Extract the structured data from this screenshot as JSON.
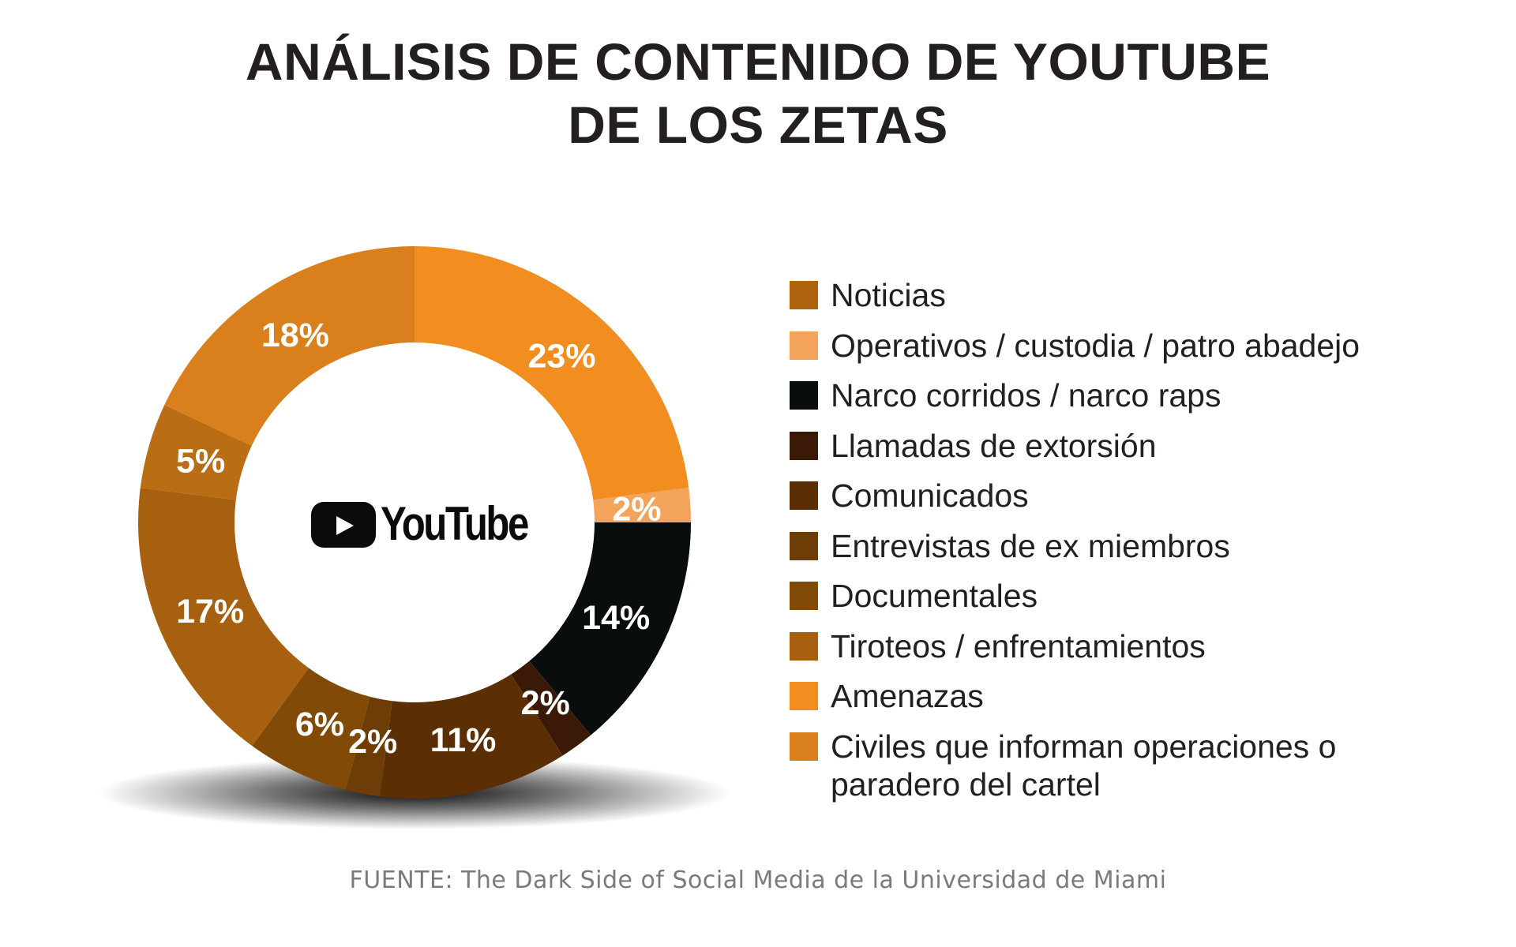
{
  "title": {
    "line1": "ANÁLISIS DE CONTENIDO DE YOUTUBE",
    "line2": "DE LOS ZETAS"
  },
  "logo": {
    "text": "YouTube",
    "icon": "youtube-play-icon"
  },
  "source": "FUENTE: The Dark Side of Social Media de la Universidad de Miami",
  "chart_data": {
    "type": "pie",
    "variant": "donut",
    "title": "ANÁLISIS DE CONTENIDO DE YOUTUBE DE LOS ZETAS",
    "legend_position": "right",
    "slices": [
      {
        "label": "Amenazas",
        "value": 23,
        "display": "23%",
        "color": "#f28d20"
      },
      {
        "label": "Operativos / custodia / patro abadejo",
        "value": 2,
        "display": "2%",
        "color": "#f4a35a"
      },
      {
        "label": "Narco corridos / narco raps",
        "value": 14,
        "display": "14%",
        "color": "#0a0d0e"
      },
      {
        "label": "Llamadas de extorsión",
        "value": 2,
        "display": "2%",
        "color": "#3a1a06"
      },
      {
        "label": "Comunicados",
        "value": 11,
        "display": "11%",
        "color": "#5c2e04"
      },
      {
        "label": "Entrevistas de ex miembros",
        "value": 2,
        "display": "2%",
        "color": "#6e3c07"
      },
      {
        "label": "Documentales",
        "value": 6,
        "display": "6%",
        "color": "#824a07"
      },
      {
        "label": "Tiroteos / enfrentamientos",
        "value": 17,
        "display": "17%",
        "color": "#a6600f"
      },
      {
        "label": "Noticias",
        "value": 5,
        "display": "5%",
        "color": "#b96d14"
      },
      {
        "label": "Civiles que informan operaciones o paradero del cartel",
        "value": 18,
        "display": "18%",
        "color": "#d97f1c"
      }
    ],
    "legend": [
      {
        "label": "Noticias",
        "color": "#b0630f"
      },
      {
        "label": "Operativos / custodia / patro abadejo",
        "color": "#f4a35a"
      },
      {
        "label": "Narco corridos / narco raps",
        "color": "#0a0d0e"
      },
      {
        "label": "Llamadas de extorsión",
        "color": "#3a1a06"
      },
      {
        "label": "Comunicados",
        "color": "#5c2e04"
      },
      {
        "label": "Entrevistas de ex miembros",
        "color": "#6e3c07"
      },
      {
        "label": "Documentales",
        "color": "#824a07"
      },
      {
        "label": "Tiroteos / enfrentamientos",
        "color": "#a6600f"
      },
      {
        "label": "Amenazas",
        "color": "#f28d20"
      },
      {
        "label": "Civiles que informan operaciones o paradero del cartel",
        "color": "#d97f1c"
      }
    ]
  }
}
